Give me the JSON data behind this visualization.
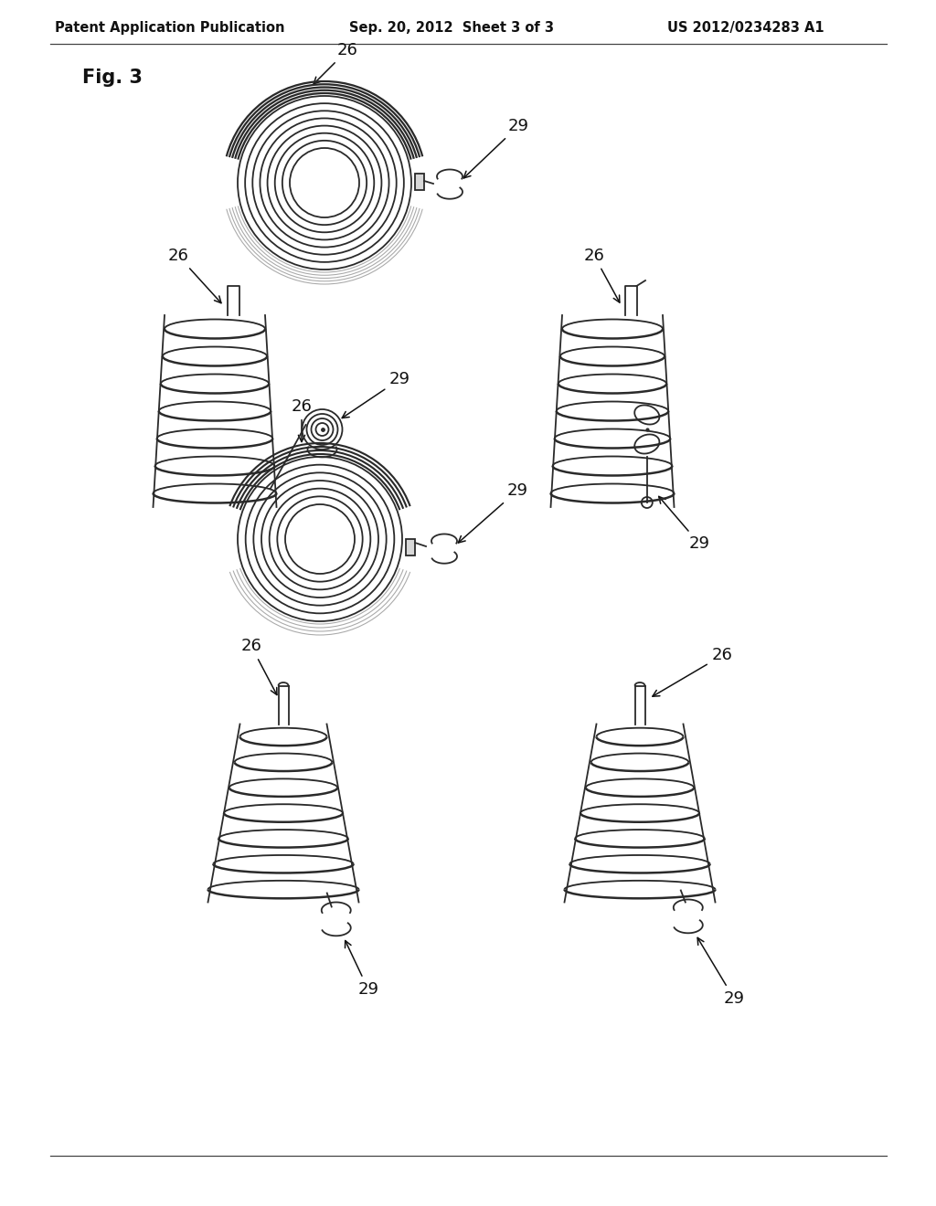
{
  "background_color": "#ffffff",
  "header_left": "Patent Application Publication",
  "header_center": "Sep. 20, 2012  Sheet 3 of 3",
  "header_right": "US 2012/0234283 A1",
  "fig_label": "Fig. 3",
  "line_color": "#2a2a2a",
  "shade_color": "#cccccc",
  "shade_dark": "#888888"
}
